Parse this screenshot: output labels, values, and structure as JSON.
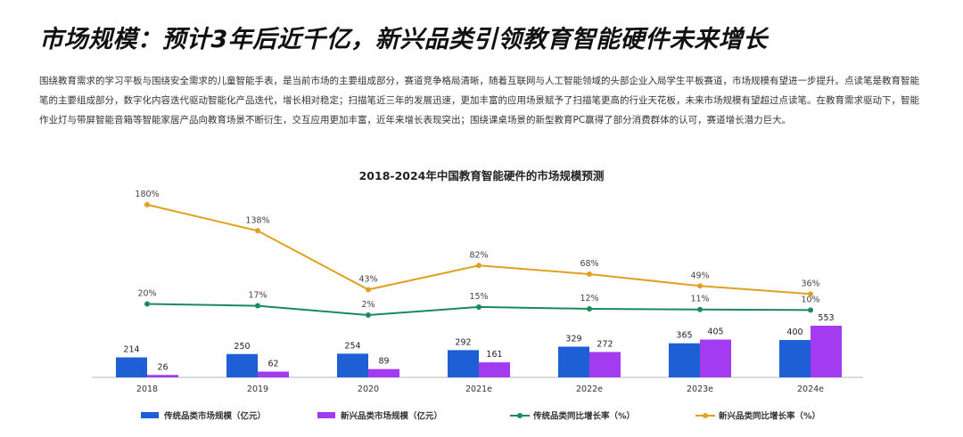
{
  "page": {
    "title": "市场规模：预计3年后近千亿，新兴品类引领教育智能硬件未来增长",
    "paragraph": "围绕教育需求的学习平板与围绕安全需求的儿童智能手表，是当前市场的主要组成部分，赛道竞争格局清晰，随着互联网与人工智能领域的头部企业入局学生平板赛道，市场规模有望进一步提升。点读笔是教育智能笔的主要组成部分，数字化内容迭代驱动智能化产品迭代，增长相对稳定；扫描笔近三年的发展迅速，更加丰富的应用场景赋予了扫描笔更高的行业天花板，未来市场规模有望超过点读笔。在教育需求驱动下，智能作业灯与带屏智能音箱等智能家居产品向教育场景不断衍生，交互应用更加丰富，近年来增长表现突出；围绕课桌场景的新型教育PC赢得了部分消费群体的认可，赛道增长潜力巨大。"
  },
  "chart_data": {
    "type": "bar+line",
    "title": "2018-2024年中国教育智能硬件的市场规模预测",
    "categories": [
      "2018",
      "2019",
      "2020",
      "2021e",
      "2022e",
      "2023e",
      "2024e"
    ],
    "bar_series": [
      {
        "name": "传统品类市场规模（亿元）",
        "color": "#1f5fd6",
        "values": [
          214,
          250,
          254,
          292,
          329,
          365,
          400
        ]
      },
      {
        "name": "新兴品类市场规模（亿元）",
        "color": "#a33cf0",
        "values": [
          26,
          62,
          89,
          161,
          272,
          405,
          553
        ]
      }
    ],
    "line_series": [
      {
        "name": "传统品类同比增长率（%）",
        "color": "#1a8a5a",
        "values": [
          20,
          17,
          2,
          15,
          12,
          11,
          10
        ]
      },
      {
        "name": "新兴品类同比增长率（%）",
        "color": "#e0a020",
        "values": [
          180,
          138,
          43,
          82,
          68,
          49,
          36
        ]
      }
    ],
    "legend_placement": "bottom",
    "grid": false
  }
}
